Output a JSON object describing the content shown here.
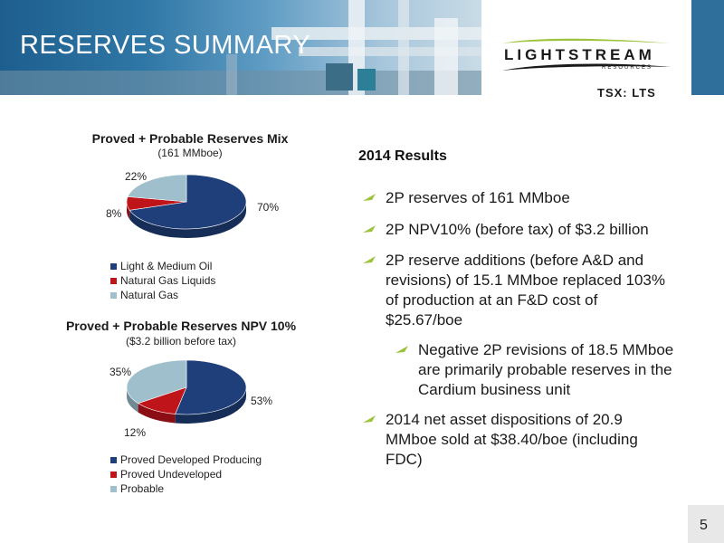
{
  "header": {
    "title": "RESERVES SUMMARY",
    "logo_main": "LIGHTSTREAM",
    "logo_sub": "RESOURCES",
    "ticker": "TSX: LTS"
  },
  "charts": [
    {
      "type": "pie",
      "title": "Proved + Probable Reserves Mix",
      "subtitle": "(161 MMboe)",
      "labels": [
        "70%",
        "8%",
        "22%"
      ],
      "legend": [
        "Light & Medium Oil",
        "Natural Gas Liquids",
        "Natural Gas"
      ]
    },
    {
      "type": "pie",
      "title": "Proved + Probable Reserves NPV 10%",
      "subtitle": "($3.2 billion before tax)",
      "labels": [
        "53%",
        "12%",
        "35%"
      ],
      "legend": [
        "Proved Developed Producing",
        "Proved Undeveloped",
        "Probable"
      ]
    }
  ],
  "chart_data": [
    {
      "type": "pie",
      "title": "Proved + Probable Reserves Mix",
      "subtitle": "(161 MMboe)",
      "categories": [
        "Light & Medium Oil",
        "Natural Gas Liquids",
        "Natural Gas"
      ],
      "values": [
        70,
        8,
        22
      ],
      "colors": [
        "#1f3f7a",
        "#c0141b",
        "#9fbfcc"
      ],
      "legend_position": "bottom-left"
    },
    {
      "type": "pie",
      "title": "Proved + Probable Reserves NPV 10%",
      "subtitle": "($3.2 billion before tax)",
      "categories": [
        "Proved Developed Producing",
        "Proved Undeveloped",
        "Probable"
      ],
      "values": [
        53,
        12,
        35
      ],
      "colors": [
        "#1f3f7a",
        "#c0141b",
        "#9fbfcc"
      ],
      "legend_position": "bottom-left"
    }
  ],
  "results": {
    "heading": "2014 Results",
    "bullets": [
      {
        "lines": [
          "2P reserves of 161 MMboe"
        ]
      },
      {
        "lines": [
          "2P NPV10% (before tax) of $3.2 billion"
        ]
      },
      {
        "lines": [
          "2P reserve additions (before A&D and",
          "revisions) of 15.1 MMboe replaced 103%",
          "of production at an F&D cost of",
          "$25.67/boe"
        ]
      },
      {
        "lines": [
          "Negative 2P revisions of 18.5 MMboe",
          "are primarily probable reserves in the",
          "Cardium business unit"
        ]
      },
      {
        "lines": [
          "2014 net asset dispositions of 20.9",
          "MMboe sold at $38.40/boe (including",
          "FDC)"
        ]
      }
    ]
  },
  "page_number": "5",
  "colors": {
    "accent_green": "#9bc33b",
    "dark_blue": "#1f3f7a",
    "red": "#c0141b",
    "light_blue": "#9fbfcc"
  }
}
